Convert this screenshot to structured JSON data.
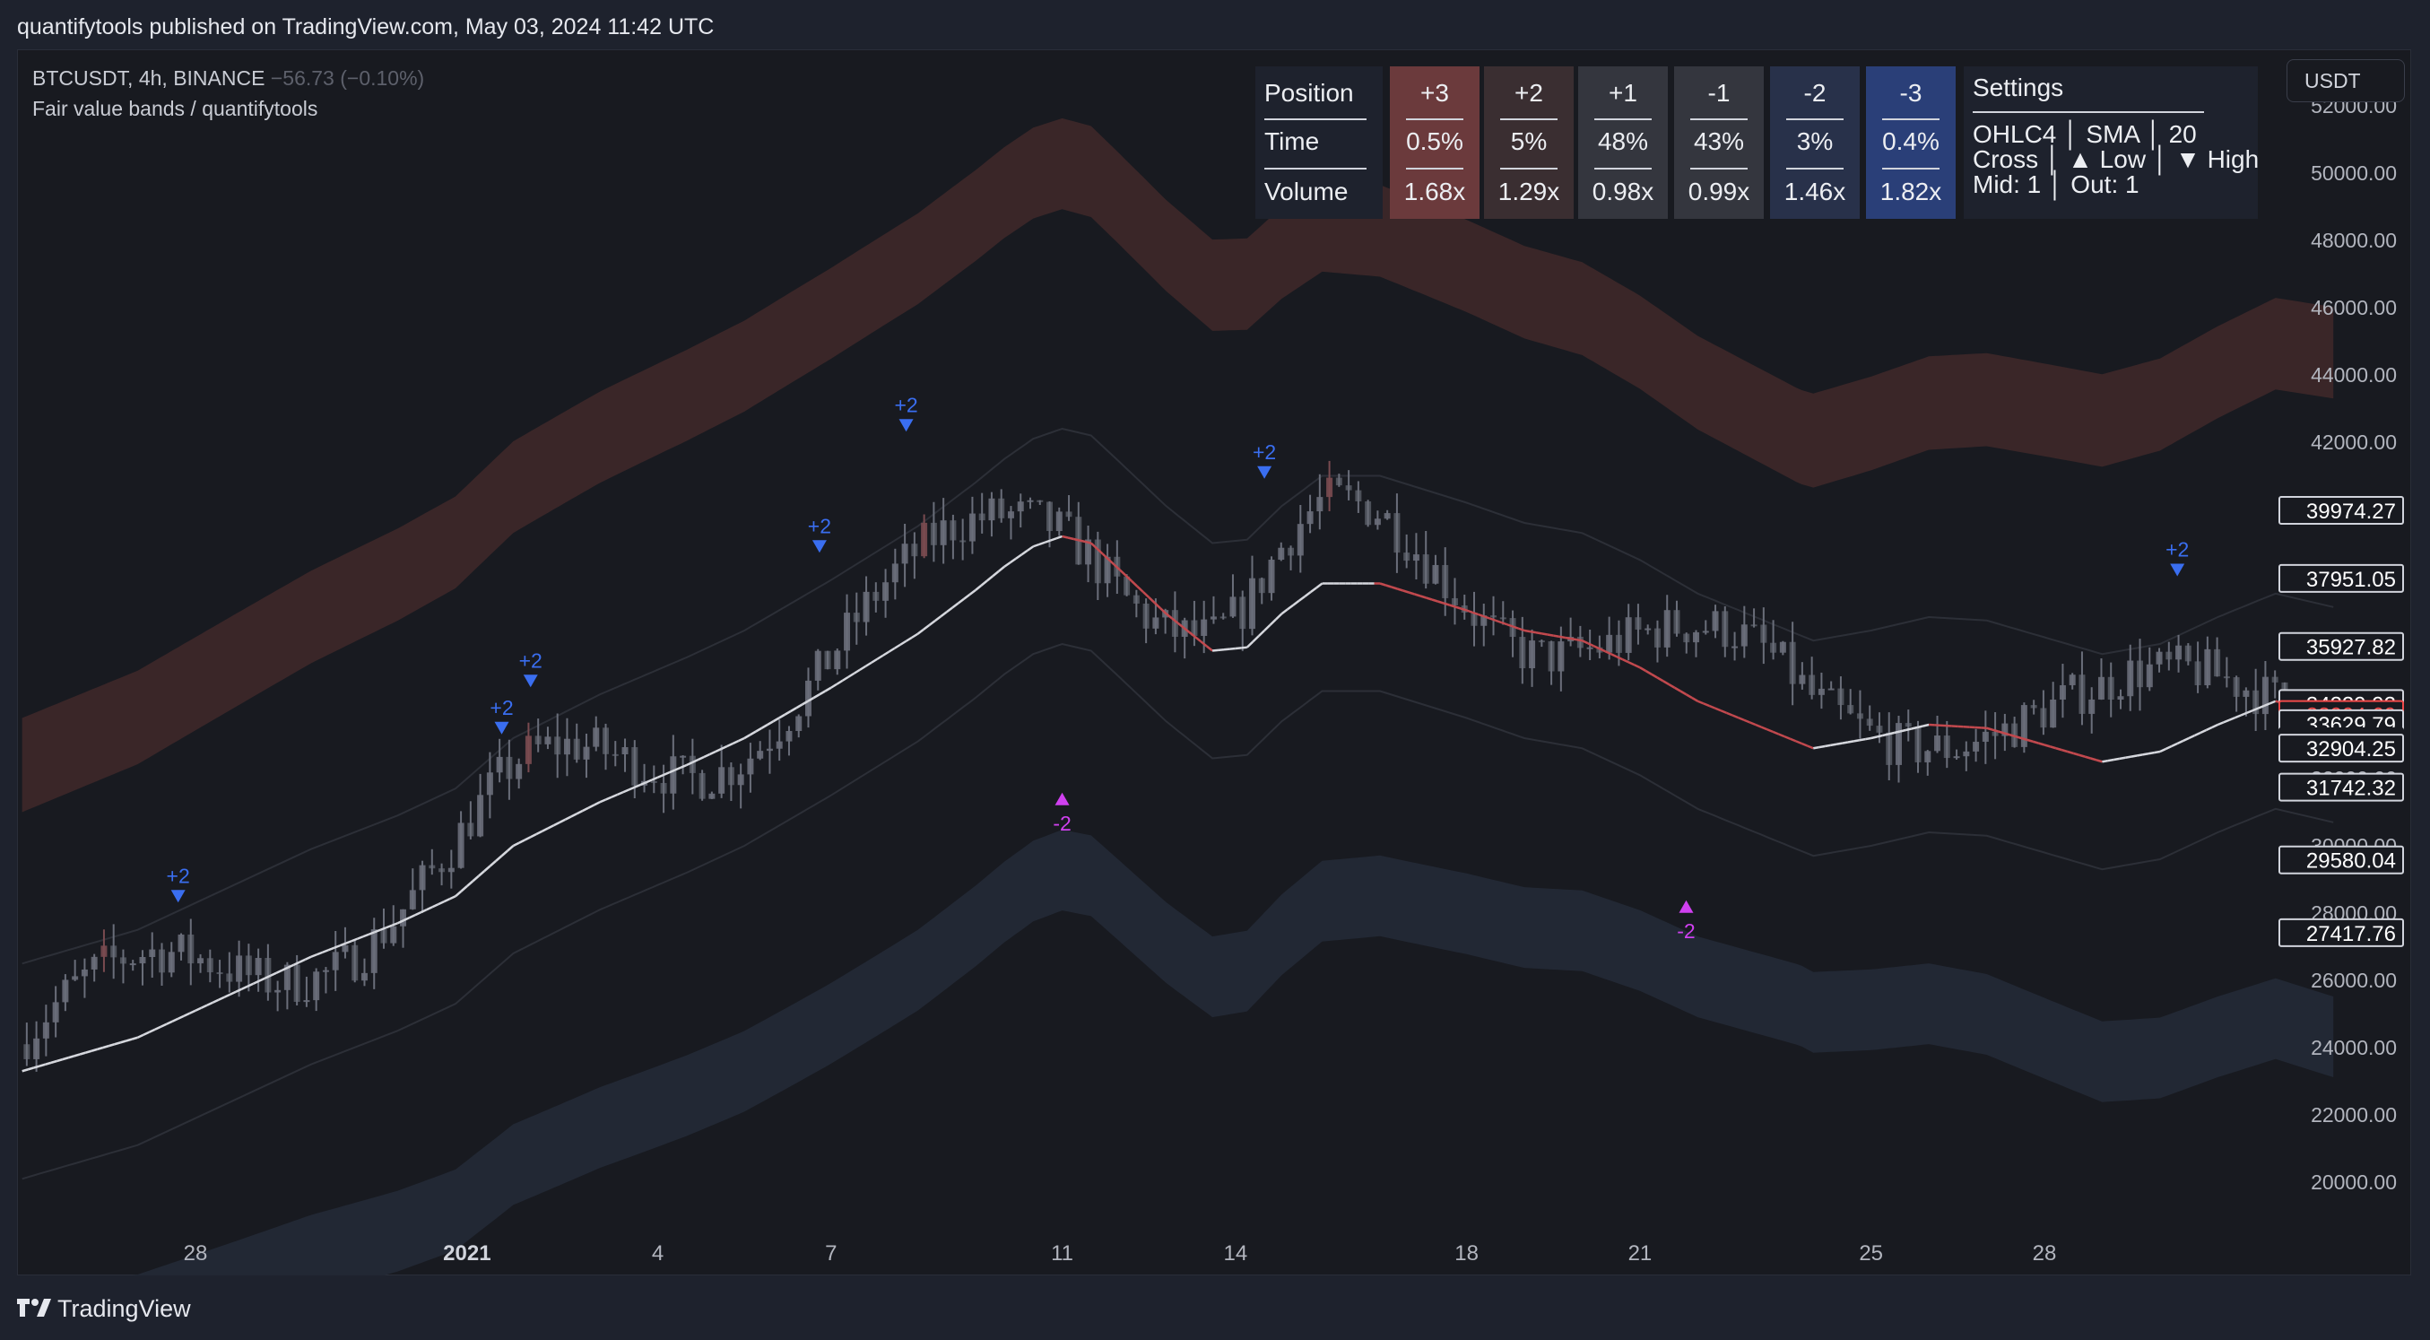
{
  "header": {
    "published": "quantifytools published on TradingView.com, May 03, 2024 11:42 UTC"
  },
  "legend": {
    "symbol": "BTCUSDT, 4h, BINANCE",
    "change": "−56.73 (−0.10%)",
    "indicator": "Fair value bands / quantifytools"
  },
  "currency_button": "USDT",
  "stats_table": {
    "row_labels": [
      "Position",
      "Time",
      "Volume"
    ],
    "columns": [
      {
        "position": "+3",
        "time": "0.5%",
        "volume": "1.68x",
        "color": "#6b3a3c"
      },
      {
        "position": "+2",
        "time": "5%",
        "volume": "1.29x",
        "color": "#3a2e31"
      },
      {
        "position": "+1",
        "time": "48%",
        "volume": "0.98x",
        "color": "#34363e"
      },
      {
        "position": "-1",
        "time": "43%",
        "volume": "0.99x",
        "color": "#34363e"
      },
      {
        "position": "-2",
        "time": "3%",
        "volume": "1.46x",
        "color": "#28314a"
      },
      {
        "position": "-3",
        "time": "0.4%",
        "volume": "1.82x",
        "color": "#2a3f78"
      }
    ],
    "settings": {
      "title": "Settings",
      "line1": "OHLC4 │ SMA │ 20",
      "line2": "Cross │ ▲ Low │ ▼ High",
      "line3": "Mid: 1 │ Out: 1"
    }
  },
  "footer": {
    "brand": "TradingView"
  },
  "chart_data": {
    "type": "candlestick",
    "title": "BTCUSDT, 4h, BINANCE",
    "ylim": [
      18500,
      53000
    ],
    "y_ticks": [
      20000,
      22000,
      24000,
      26000,
      28000,
      30000,
      32000,
      34000,
      36000,
      38000,
      40000,
      42000,
      44000,
      46000,
      48000,
      50000,
      52000
    ],
    "y_tick_labels": [
      "20000.00",
      "22000.00",
      "24000.00",
      "26000.00",
      "28000.00",
      "30000.00",
      "32000.00",
      "34000.00",
      "36000.00",
      "38000.00",
      "40000.00",
      "42000.00",
      "44000.00",
      "46000.00",
      "48000.00",
      "50000.00",
      "52000.00"
    ],
    "x_ticks": [
      {
        "day": 28.0,
        "label": "28",
        "bold": false
      },
      {
        "day": 32.7,
        "label": "2021",
        "bold": true
      },
      {
        "day": 36.0,
        "label": "4",
        "bold": false
      },
      {
        "day": 39.0,
        "label": "7",
        "bold": false
      },
      {
        "day": 43.0,
        "label": "11",
        "bold": false
      },
      {
        "day": 46.0,
        "label": "14",
        "bold": false
      },
      {
        "day": 50.0,
        "label": "18",
        "bold": false
      },
      {
        "day": 53.0,
        "label": "21",
        "bold": false
      },
      {
        "day": 57.0,
        "label": "25",
        "bold": false
      },
      {
        "day": 60.0,
        "label": "28",
        "bold": false
      }
    ],
    "x_range_days": [
      25.0,
      65.0
    ],
    "fair_value_line": [
      [
        25.0,
        23300
      ],
      [
        27.0,
        24300
      ],
      [
        28.5,
        25500
      ],
      [
        30.0,
        26700
      ],
      [
        31.5,
        27700
      ],
      [
        32.5,
        28500
      ],
      [
        33.5,
        30000
      ],
      [
        35.0,
        31300
      ],
      [
        36.5,
        32400
      ],
      [
        37.5,
        33200
      ],
      [
        39.0,
        34700
      ],
      [
        40.5,
        36300
      ],
      [
        41.5,
        37600
      ],
      [
        42.0,
        38300
      ],
      [
        42.5,
        38900
      ],
      [
        43.0,
        39200
      ],
      [
        43.5,
        39000
      ],
      [
        44.0,
        38200
      ],
      [
        44.8,
        36900
      ],
      [
        45.6,
        35800
      ],
      [
        46.2,
        35900
      ],
      [
        46.8,
        36900
      ],
      [
        47.5,
        37800
      ],
      [
        48.5,
        37800
      ],
      [
        50.0,
        37000
      ],
      [
        51.0,
        36400
      ],
      [
        52.0,
        36100
      ],
      [
        53.0,
        35300
      ],
      [
        54.0,
        34300
      ],
      [
        55.0,
        33600
      ],
      [
        56.0,
        32900
      ],
      [
        57.0,
        33200
      ],
      [
        58.0,
        33600
      ],
      [
        59.0,
        33500
      ],
      [
        60.0,
        33000
      ],
      [
        61.0,
        32500
      ],
      [
        62.0,
        32800
      ],
      [
        63.0,
        33600
      ],
      [
        64.0,
        34300
      ],
      [
        65.0,
        33900
      ]
    ],
    "bands": {
      "upper_outer_offset": [
        10500,
        12500
      ],
      "upper_inner_offset": [
        7700,
        9800
      ],
      "lower_inner_offset": [
        -6600,
        -8800
      ],
      "lower_outer_offset": [
        -9000,
        -11200
      ],
      "mid_offsets": [
        3200,
        -3200
      ],
      "upper_color": "#3a2628",
      "lower_color": "#222834"
    },
    "signals": [
      {
        "day": 27.7,
        "price": 28900,
        "label": "+2",
        "dir": "down",
        "color": "#3a6ef0"
      },
      {
        "day": 33.3,
        "price": 33900,
        "label": "+2",
        "dir": "down",
        "color": "#3a6ef0"
      },
      {
        "day": 33.8,
        "price": 35300,
        "label": "+2",
        "dir": "down",
        "color": "#3a6ef0"
      },
      {
        "day": 38.8,
        "price": 39300,
        "label": "+2",
        "dir": "down",
        "color": "#3a6ef0"
      },
      {
        "day": 40.3,
        "price": 42900,
        "label": "+2",
        "dir": "down",
        "color": "#3a6ef0"
      },
      {
        "day": 43.0,
        "price": 31100,
        "label": "-2",
        "dir": "up",
        "color": "#d040f0"
      },
      {
        "day": 46.5,
        "price": 41500,
        "label": "+2",
        "dir": "down",
        "color": "#3a6ef0"
      },
      {
        "day": 53.8,
        "price": 27900,
        "label": "-2",
        "dir": "up",
        "color": "#d040f0"
      },
      {
        "day": 62.3,
        "price": 38600,
        "label": "+2",
        "dir": "down",
        "color": "#3a6ef0"
      }
    ],
    "price_labels": [
      {
        "value": 39974.27,
        "text": "39974.27",
        "color": "#ffffff",
        "bg": "#181a20",
        "border": "#d1d4dc"
      },
      {
        "value": 37951.05,
        "text": "37951.05",
        "color": "#ffffff",
        "bg": "#181a20",
        "border": "#d1d4dc"
      },
      {
        "value": 35927.82,
        "text": "35927.82",
        "color": "#ffffff",
        "bg": "#181a20",
        "border": "#d1d4dc"
      },
      {
        "value": 34229.92,
        "text": "34229.92",
        "color": "#ffffff",
        "bg": "#181a20",
        "border": "#d1d4dc"
      },
      {
        "value": 33904.6,
        "text": "33904.60",
        "color": "#f04a4a",
        "bg": "#181a20",
        "border": "#f04a4a"
      },
      {
        "value": 33629.79,
        "text": "33629.79",
        "color": "#ffffff",
        "bg": "#181a20",
        "border": "#d1d4dc"
      },
      {
        "value": 33092.98,
        "text": "33092.98",
        "color": "#3e414b",
        "bg": "#181a20",
        "border": "#181a20"
      },
      {
        "value": 32904.25,
        "text": "32904.25",
        "color": "#ffffff",
        "bg": "#181a20",
        "border": "#d1d4dc"
      },
      {
        "value": 31742.32,
        "text": "31742.32",
        "color": "#ffffff",
        "bg": "#181a20",
        "border": "#d1d4dc"
      },
      {
        "value": 29580.04,
        "text": "29580.04",
        "color": "#ffffff",
        "bg": "#181a20",
        "border": "#d1d4dc"
      },
      {
        "value": 27417.76,
        "text": "27417.76",
        "color": "#ffffff",
        "bg": "#181a20",
        "border": "#d1d4dc"
      }
    ]
  }
}
